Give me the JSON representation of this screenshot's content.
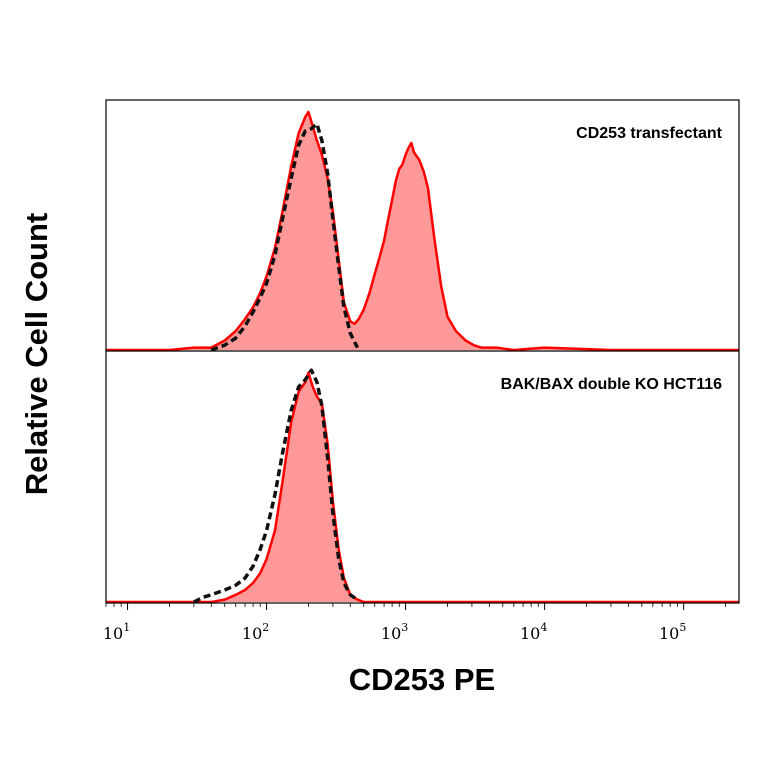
{
  "chart_data": {
    "type": "area",
    "xlabel": "CD253 PE",
    "ylabel": "Relative Cell Count",
    "xscale": "log",
    "xlim": [
      7,
      250000
    ],
    "x_ticks": [
      {
        "base": "10",
        "exp": "1",
        "value": 10
      },
      {
        "base": "10",
        "exp": "2",
        "value": 100
      },
      {
        "base": "10",
        "exp": "3",
        "value": 1000
      },
      {
        "base": "10",
        "exp": "4",
        "value": 10000
      },
      {
        "base": "10",
        "exp": "5",
        "value": 100000
      }
    ],
    "grid": false,
    "colors": {
      "sample": "#ff0000",
      "sample_fill": "#ff9999",
      "control": "#111111"
    },
    "panels": [
      {
        "label": "CD253 transfectant",
        "ylim": [
          0,
          100
        ],
        "series": [
          {
            "style": "filled-red",
            "x": [
              7,
              20,
              30,
              40,
              50,
              60,
              70,
              80,
              90,
              100,
              115,
              130,
              150,
              170,
              190,
              200,
              215,
              230,
              250,
              275,
              300,
              330,
              360,
              400,
              430,
              460,
              500,
              550,
              600,
              650,
              700,
              750,
              800,
              850,
              900,
              950,
              1000,
              1050,
              1100,
              1150,
              1250,
              1350,
              1450,
              1600,
              1800,
              2000,
              2300,
              2700,
              3100,
              3500,
              4500,
              6000,
              10000,
              30000,
              100000,
              250000
            ],
            "y": [
              0,
              0,
              1,
              1,
              4,
              8,
              13,
              18,
              24,
              31,
              43,
              58,
              77,
              91,
              98,
              100,
              94,
              88,
              82,
              72,
              58,
              38,
              20,
              12,
              11,
              13,
              17,
              24,
              32,
              39,
              46,
              55,
              63,
              71,
              76,
              78,
              82,
              85,
              87,
              83,
              80,
              75,
              68,
              48,
              27,
              14,
              8,
              4,
              2,
              1,
              1,
              0,
              1,
              0,
              0,
              0
            ]
          },
          {
            "style": "dashed-black",
            "x": [
              40,
              50,
              60,
              70,
              80,
              90,
              100,
              115,
              130,
              150,
              170,
              190,
              210,
              230,
              250,
              275,
              300,
              330,
              360,
              400,
              450
            ],
            "y": [
              0,
              2,
              5,
              10,
              16,
              22,
              28,
              40,
              55,
              72,
              86,
              92,
              93,
              95,
              88,
              74,
              55,
              35,
              18,
              7,
              1
            ]
          }
        ]
      },
      {
        "label": "BAK/BAX double KO HCT116",
        "ylim": [
          0,
          100
        ],
        "series": [
          {
            "style": "filled-red",
            "x": [
              7,
              40,
              50,
              60,
              70,
              80,
              90,
              100,
              115,
              130,
              150,
              170,
              190,
              200,
              215,
              230,
              250,
              275,
              300,
              330,
              360,
              400,
              450,
              500,
              700,
              1000,
              10000,
              100000,
              250000
            ],
            "y": [
              0,
              0,
              1,
              3,
              5,
              8,
              12,
              18,
              30,
              50,
              75,
              88,
              92,
              96,
              90,
              86,
              83,
              66,
              42,
              22,
              10,
              3,
              1,
              0,
              0,
              0,
              0,
              0,
              0
            ]
          },
          {
            "style": "dashed-black",
            "x": [
              30,
              35,
              40,
              50,
              60,
              70,
              80,
              90,
              100,
              115,
              130,
              150,
              170,
              190,
              210,
              230,
              250,
              275,
              300,
              330,
              360,
              400,
              450
            ],
            "y": [
              0,
              2,
              3,
              5,
              7,
              10,
              15,
              22,
              30,
              45,
              62,
              80,
              90,
              93,
              97,
              92,
              82,
              60,
              37,
              18,
              8,
              3,
              1
            ]
          }
        ]
      }
    ]
  }
}
